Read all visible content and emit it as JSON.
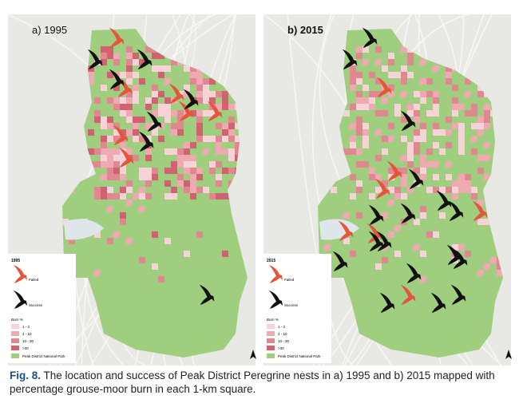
{
  "panels": [
    {
      "label": "a) 1995",
      "legend": {
        "title": "1995",
        "failed": "Failed",
        "success": "Success",
        "burn_title": "Burn %",
        "burn_classes": [
          "1 - 3",
          "4 - 10",
          "10 - 30",
          ">30"
        ],
        "park": "Peak District National Park"
      }
    },
    {
      "label": "b) 2015",
      "legend": {
        "title": "2015",
        "failed": "Failed",
        "success": "Success",
        "burn_title": "Burn %",
        "burn_classes": [
          "1 - 3",
          "4 - 10",
          "10 - 30",
          ">30"
        ],
        "park": "Peak District National Park"
      }
    }
  ],
  "caption": {
    "label": "Fig. 8.",
    "text": "The location and success of Peak District Peregrine nests in a) 1995 and b) 2015 mapped with percentage grouse-moor burn in each 1-km square."
  }
}
